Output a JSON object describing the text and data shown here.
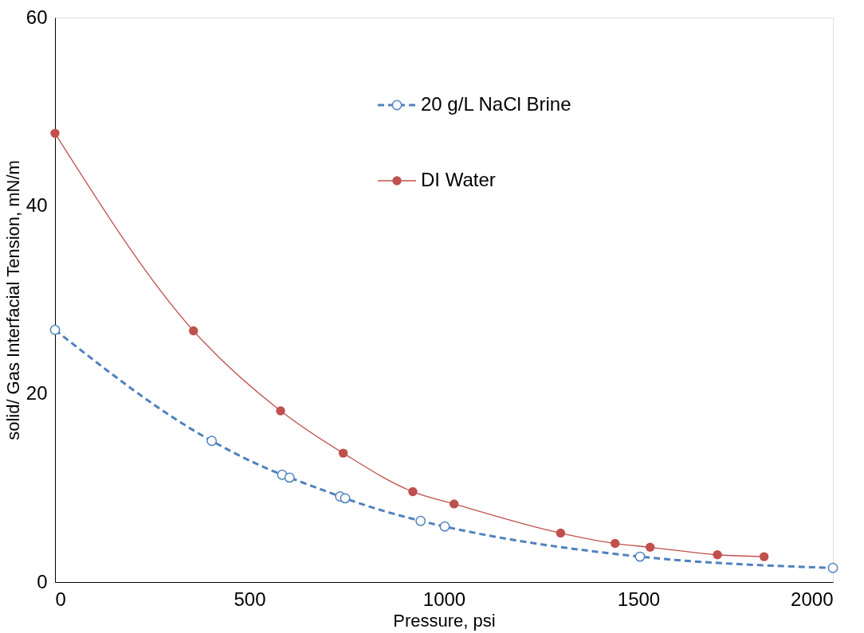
{
  "chart_data": {
    "type": "line",
    "xlabel": "Pressure, psi",
    "ylabel": "solid/ Gas Interfacial Tension, mN/m",
    "xlim": [
      0,
      2000
    ],
    "xticks": [
      0,
      500,
      1000,
      1500,
      2000
    ],
    "ylim": [
      0,
      60
    ],
    "yticks": [
      0,
      20,
      40,
      60
    ],
    "grid": false,
    "legend": "top right",
    "marker": "circle",
    "series": [
      {
        "name": "20 g/L NaCl Brine",
        "color": "#4f81bd",
        "line_style": "dashed",
        "x": [
          0,
          403,
          584,
          603,
          733,
          746,
          940,
          1002,
          1504,
          2000
        ],
        "values": [
          26.8,
          15.0,
          11.4,
          11.1,
          9.1,
          8.9,
          6.5,
          5.9,
          2.7,
          1.5
        ]
      },
      {
        "name": "DI Water",
        "color": "#c0504d",
        "line_style": "solid",
        "x": [
          0,
          356,
          580,
          741,
          920,
          1026,
          1300,
          1440,
          1530,
          1703,
          1823
        ],
        "values": [
          47.7,
          26.7,
          18.2,
          13.7,
          9.6,
          8.3,
          5.2,
          4.1,
          3.7,
          2.9,
          2.7
        ]
      }
    ]
  }
}
